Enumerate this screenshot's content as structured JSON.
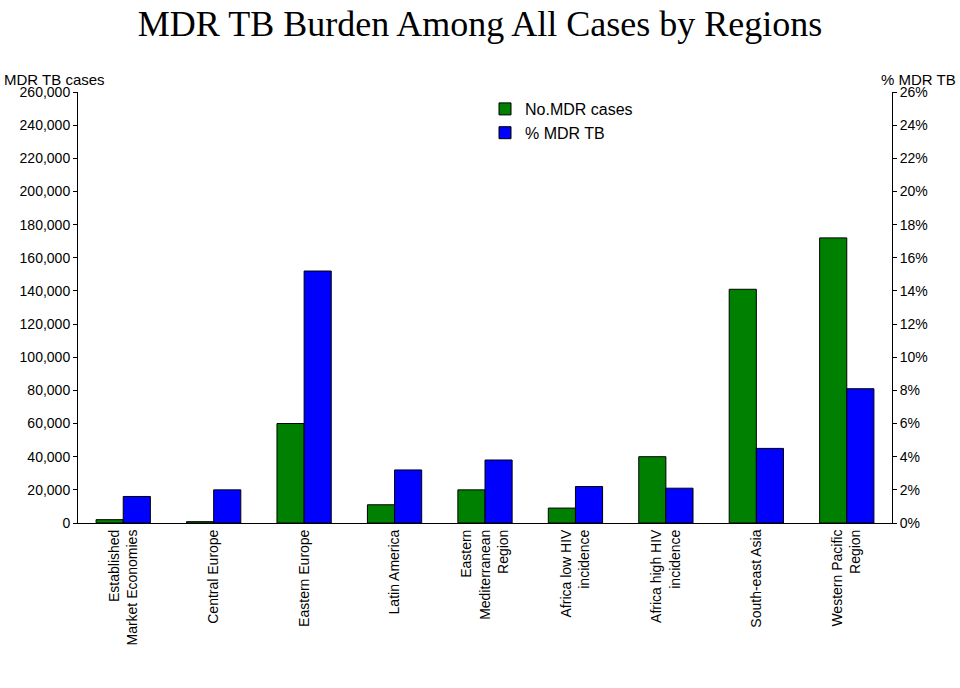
{
  "chart_data": {
    "type": "bar",
    "title": "MDR TB Burden Among All Cases by Regions",
    "ylabel": "MDR TB cases",
    "y2label": "% MDR TB",
    "categories": [
      "Established\nMarket Economies",
      "Central Europe",
      "Eastern Europe",
      "Latin America",
      "Eastern\nMediterranean\nRegion",
      "Africa low HIV\nincidence",
      "Africa high HIV\nincidence",
      "South-east Asia",
      "Western Pacific\nRegion"
    ],
    "series": [
      {
        "name": "No.MDR cases",
        "color": "#008000",
        "values": [
          2000,
          800,
          60000,
          11000,
          20000,
          9000,
          40000,
          141000,
          172000
        ]
      },
      {
        "name": "% MDR TB",
        "color": "#0000ff",
        "axis": "y2",
        "values": [
          1.6,
          2.0,
          15.2,
          3.2,
          3.8,
          2.2,
          2.1,
          4.5,
          8.1
        ]
      }
    ],
    "ylim": [
      0,
      260000
    ],
    "yticks": [
      0,
      {
        "value": 20000,
        "label": "20,000"
      },
      {
        "value": 40000,
        "label": "40,000"
      },
      {
        "value": 60000,
        "label": "60,000"
      },
      {
        "value": 80000,
        "label": "80,000"
      },
      {
        "value": 100000,
        "label": "100,000"
      },
      {
        "value": 120000,
        "label": "120,000"
      },
      {
        "value": 140000,
        "label": "140,000"
      },
      {
        "value": 160000,
        "label": "160,000"
      },
      {
        "value": 180000,
        "label": "180,000"
      },
      {
        "value": 200000,
        "label": "200,000"
      },
      {
        "value": 220000,
        "label": "220,000"
      },
      {
        "value": 240000,
        "label": "240,000"
      },
      {
        "value": 260000,
        "label": "260,000"
      }
    ],
    "y2lim": [
      0,
      26
    ],
    "y2ticks": [
      {
        "value": 0,
        "label": "0%"
      },
      {
        "value": 2,
        "label": "2%"
      },
      {
        "value": 4,
        "label": "4%"
      },
      {
        "value": 6,
        "label": "6%"
      },
      {
        "value": 8,
        "label": "8%"
      },
      {
        "value": 10,
        "label": "10%"
      },
      {
        "value": 12,
        "label": "12%"
      },
      {
        "value": 14,
        "label": "14%"
      },
      {
        "value": 16,
        "label": "16%"
      },
      {
        "value": 18,
        "label": "18%"
      },
      {
        "value": 20,
        "label": "20%"
      },
      {
        "value": 22,
        "label": "22%"
      },
      {
        "value": 24,
        "label": "24%"
      },
      {
        "value": 26,
        "label": "26%"
      }
    ],
    "legend": "top",
    "grid": false
  }
}
